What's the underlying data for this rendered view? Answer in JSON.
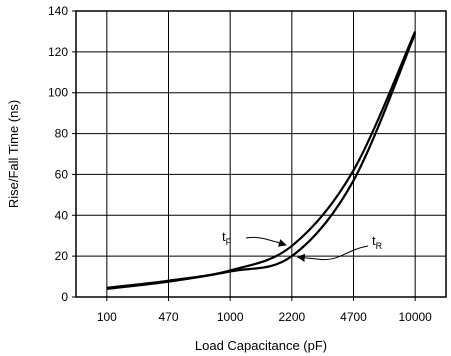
{
  "chart_data": {
    "type": "line",
    "xlabel": "Load Capacitance (pF)",
    "ylabel": "Rise/Fall Time (ns)",
    "x_categories": [
      "100",
      "470",
      "1000",
      "2200",
      "4700",
      "10000"
    ],
    "ylim": [
      0,
      140
    ],
    "yticks": [
      0,
      20,
      40,
      60,
      80,
      100,
      120,
      140
    ],
    "grid": true,
    "series": [
      {
        "name": "tF",
        "label_main": "t",
        "label_sub": "F",
        "values": [
          4.5,
          8,
          13,
          25,
          62,
          130
        ]
      },
      {
        "name": "tR",
        "label_main": "t",
        "label_sub": "R",
        "values": [
          4,
          7.5,
          12.5,
          20,
          57,
          129
        ]
      }
    ]
  }
}
